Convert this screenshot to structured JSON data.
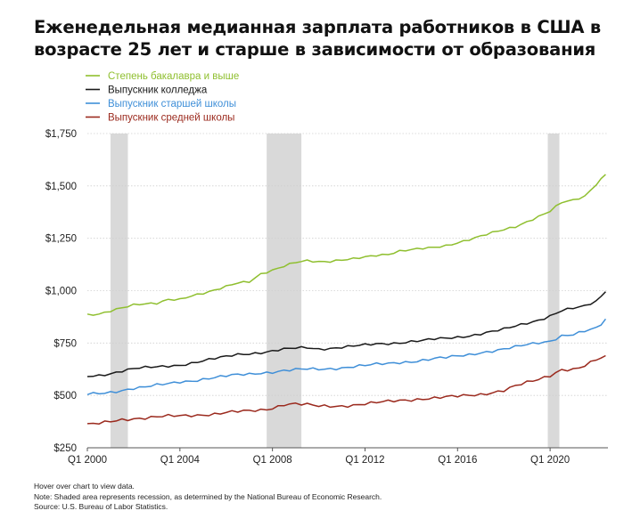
{
  "title": {
    "line1": "Еженедельная медианная зарплата работников в США в",
    "line2": "возрасте 25 лет и старше в зависимости от образования"
  },
  "notes": {
    "hover": "Hover over chart to view data.",
    "note": "Note: Shaded area represents recession, as determined by the National Bureau of Economic Research.",
    "source": "Source: U.S. Bureau of Labor Statistics."
  },
  "chart_data": {
    "type": "line",
    "title": "Еженедельная медианная зарплата работников в США в возрасте 25 лет и старше в зависимости от образования",
    "xlabel": "",
    "ylabel": "",
    "grid": "horizontal",
    "legend_position": "top-left",
    "xlim": [
      2000.0,
      2022.5
    ],
    "ylim": [
      250,
      1750
    ],
    "yticks": [
      250,
      500,
      750,
      1000,
      1250,
      1500,
      1750
    ],
    "ytick_labels": [
      "$250",
      "$500",
      "$750",
      "$1,000",
      "$1,250",
      "$1,500",
      "$1,750"
    ],
    "xticks": [
      2000,
      2004,
      2008,
      2012,
      2016,
      2020
    ],
    "xtick_labels": [
      "Q1 2000",
      "Q1 2004",
      "Q1 2008",
      "Q1 2012",
      "Q1 2016",
      "Q1 2020"
    ],
    "recessions": [
      [
        2001.0,
        2001.75
      ],
      [
        2007.75,
        2009.25
      ],
      [
        2019.9,
        2020.4
      ]
    ],
    "series": [
      {
        "name": "Степень бакалавра и выше",
        "color": "#8fbf2f",
        "points": [
          [
            2000.0,
            885
          ],
          [
            2000.5,
            890
          ],
          [
            2001.0,
            905
          ],
          [
            2001.5,
            918
          ],
          [
            2002.0,
            930
          ],
          [
            2002.5,
            935
          ],
          [
            2003.0,
            940
          ],
          [
            2003.5,
            960
          ],
          [
            2004.0,
            960
          ],
          [
            2004.5,
            975
          ],
          [
            2005.0,
            985
          ],
          [
            2005.5,
            1000
          ],
          [
            2006.0,
            1020
          ],
          [
            2006.5,
            1040
          ],
          [
            2007.0,
            1045
          ],
          [
            2007.5,
            1080
          ],
          [
            2008.0,
            1095
          ],
          [
            2008.5,
            1115
          ],
          [
            2009.0,
            1135
          ],
          [
            2009.5,
            1145
          ],
          [
            2010.0,
            1140
          ],
          [
            2010.5,
            1140
          ],
          [
            2011.0,
            1145
          ],
          [
            2011.5,
            1150
          ],
          [
            2012.0,
            1160
          ],
          [
            2012.5,
            1170
          ],
          [
            2013.0,
            1175
          ],
          [
            2013.5,
            1190
          ],
          [
            2014.0,
            1195
          ],
          [
            2014.5,
            1200
          ],
          [
            2015.0,
            1205
          ],
          [
            2015.5,
            1215
          ],
          [
            2016.0,
            1230
          ],
          [
            2016.5,
            1245
          ],
          [
            2017.0,
            1260
          ],
          [
            2017.5,
            1275
          ],
          [
            2018.0,
            1290
          ],
          [
            2018.5,
            1305
          ],
          [
            2019.0,
            1330
          ],
          [
            2019.5,
            1355
          ],
          [
            2020.0,
            1380
          ],
          [
            2020.5,
            1420
          ],
          [
            2021.0,
            1430
          ],
          [
            2021.5,
            1450
          ],
          [
            2022.0,
            1510
          ],
          [
            2022.4,
            1555
          ]
        ]
      },
      {
        "name": "Выпускник колледжа",
        "color": "#1a1a1a",
        "points": [
          [
            2000.0,
            590
          ],
          [
            2000.5,
            595
          ],
          [
            2001.0,
            605
          ],
          [
            2001.5,
            618
          ],
          [
            2002.0,
            628
          ],
          [
            2002.5,
            632
          ],
          [
            2003.0,
            635
          ],
          [
            2003.5,
            640
          ],
          [
            2004.0,
            645
          ],
          [
            2004.5,
            655
          ],
          [
            2005.0,
            665
          ],
          [
            2005.5,
            675
          ],
          [
            2006.0,
            685
          ],
          [
            2006.5,
            695
          ],
          [
            2007.0,
            700
          ],
          [
            2007.5,
            705
          ],
          [
            2008.0,
            712
          ],
          [
            2008.5,
            720
          ],
          [
            2009.0,
            725
          ],
          [
            2009.5,
            728
          ],
          [
            2010.0,
            722
          ],
          [
            2010.5,
            725
          ],
          [
            2011.0,
            730
          ],
          [
            2011.5,
            735
          ],
          [
            2012.0,
            740
          ],
          [
            2012.5,
            745
          ],
          [
            2013.0,
            748
          ],
          [
            2013.5,
            752
          ],
          [
            2014.0,
            758
          ],
          [
            2014.5,
            762
          ],
          [
            2015.0,
            768
          ],
          [
            2015.5,
            772
          ],
          [
            2016.0,
            778
          ],
          [
            2016.5,
            785
          ],
          [
            2017.0,
            795
          ],
          [
            2017.5,
            805
          ],
          [
            2018.0,
            815
          ],
          [
            2018.5,
            830
          ],
          [
            2019.0,
            845
          ],
          [
            2019.5,
            860
          ],
          [
            2020.0,
            880
          ],
          [
            2020.5,
            905
          ],
          [
            2021.0,
            915
          ],
          [
            2021.5,
            925
          ],
          [
            2022.0,
            950
          ],
          [
            2022.4,
            995
          ]
        ]
      },
      {
        "name": "Выпускник старшей школы",
        "color": "#3f8fd8",
        "points": [
          [
            2000.0,
            505
          ],
          [
            2000.5,
            508
          ],
          [
            2001.0,
            515
          ],
          [
            2001.5,
            525
          ],
          [
            2002.0,
            535
          ],
          [
            2002.5,
            540
          ],
          [
            2003.0,
            548
          ],
          [
            2003.5,
            555
          ],
          [
            2004.0,
            565
          ],
          [
            2004.5,
            570
          ],
          [
            2005.0,
            578
          ],
          [
            2005.5,
            585
          ],
          [
            2006.0,
            592
          ],
          [
            2006.5,
            598
          ],
          [
            2007.0,
            602
          ],
          [
            2007.5,
            608
          ],
          [
            2008.0,
            612
          ],
          [
            2008.5,
            618
          ],
          [
            2009.0,
            622
          ],
          [
            2009.5,
            625
          ],
          [
            2010.0,
            625
          ],
          [
            2010.5,
            628
          ],
          [
            2011.0,
            632
          ],
          [
            2011.5,
            638
          ],
          [
            2012.0,
            642
          ],
          [
            2012.5,
            648
          ],
          [
            2013.0,
            652
          ],
          [
            2013.5,
            658
          ],
          [
            2014.0,
            662
          ],
          [
            2014.5,
            668
          ],
          [
            2015.0,
            675
          ],
          [
            2015.5,
            680
          ],
          [
            2016.0,
            688
          ],
          [
            2016.5,
            695
          ],
          [
            2017.0,
            705
          ],
          [
            2017.5,
            712
          ],
          [
            2018.0,
            720
          ],
          [
            2018.5,
            730
          ],
          [
            2019.0,
            742
          ],
          [
            2019.5,
            752
          ],
          [
            2020.0,
            760
          ],
          [
            2020.5,
            785
          ],
          [
            2021.0,
            790
          ],
          [
            2021.5,
            805
          ],
          [
            2022.0,
            820
          ],
          [
            2022.4,
            865
          ]
        ]
      },
      {
        "name": "Выпускник средней школы",
        "color": "#9b2a1e",
        "points": [
          [
            2000.0,
            360
          ],
          [
            2000.5,
            365
          ],
          [
            2001.0,
            375
          ],
          [
            2001.5,
            385
          ],
          [
            2002.0,
            390
          ],
          [
            2002.5,
            393
          ],
          [
            2003.0,
            397
          ],
          [
            2003.5,
            400
          ],
          [
            2004.0,
            402
          ],
          [
            2004.5,
            405
          ],
          [
            2005.0,
            408
          ],
          [
            2005.5,
            412
          ],
          [
            2006.0,
            418
          ],
          [
            2006.5,
            422
          ],
          [
            2007.0,
            425
          ],
          [
            2007.5,
            430
          ],
          [
            2008.0,
            440
          ],
          [
            2008.5,
            458
          ],
          [
            2009.0,
            460
          ],
          [
            2009.5,
            455
          ],
          [
            2010.0,
            448
          ],
          [
            2010.5,
            448
          ],
          [
            2011.0,
            450
          ],
          [
            2011.5,
            455
          ],
          [
            2012.0,
            460
          ],
          [
            2012.5,
            465
          ],
          [
            2013.0,
            470
          ],
          [
            2013.5,
            475
          ],
          [
            2014.0,
            480
          ],
          [
            2014.5,
            485
          ],
          [
            2015.0,
            488
          ],
          [
            2015.5,
            492
          ],
          [
            2016.0,
            495
          ],
          [
            2016.5,
            500
          ],
          [
            2017.0,
            505
          ],
          [
            2017.5,
            515
          ],
          [
            2018.0,
            525
          ],
          [
            2018.5,
            545
          ],
          [
            2019.0,
            560
          ],
          [
            2019.5,
            575
          ],
          [
            2020.0,
            595
          ],
          [
            2020.5,
            625
          ],
          [
            2021.0,
            625
          ],
          [
            2021.5,
            640
          ],
          [
            2022.0,
            670
          ],
          [
            2022.4,
            690
          ]
        ]
      }
    ]
  }
}
